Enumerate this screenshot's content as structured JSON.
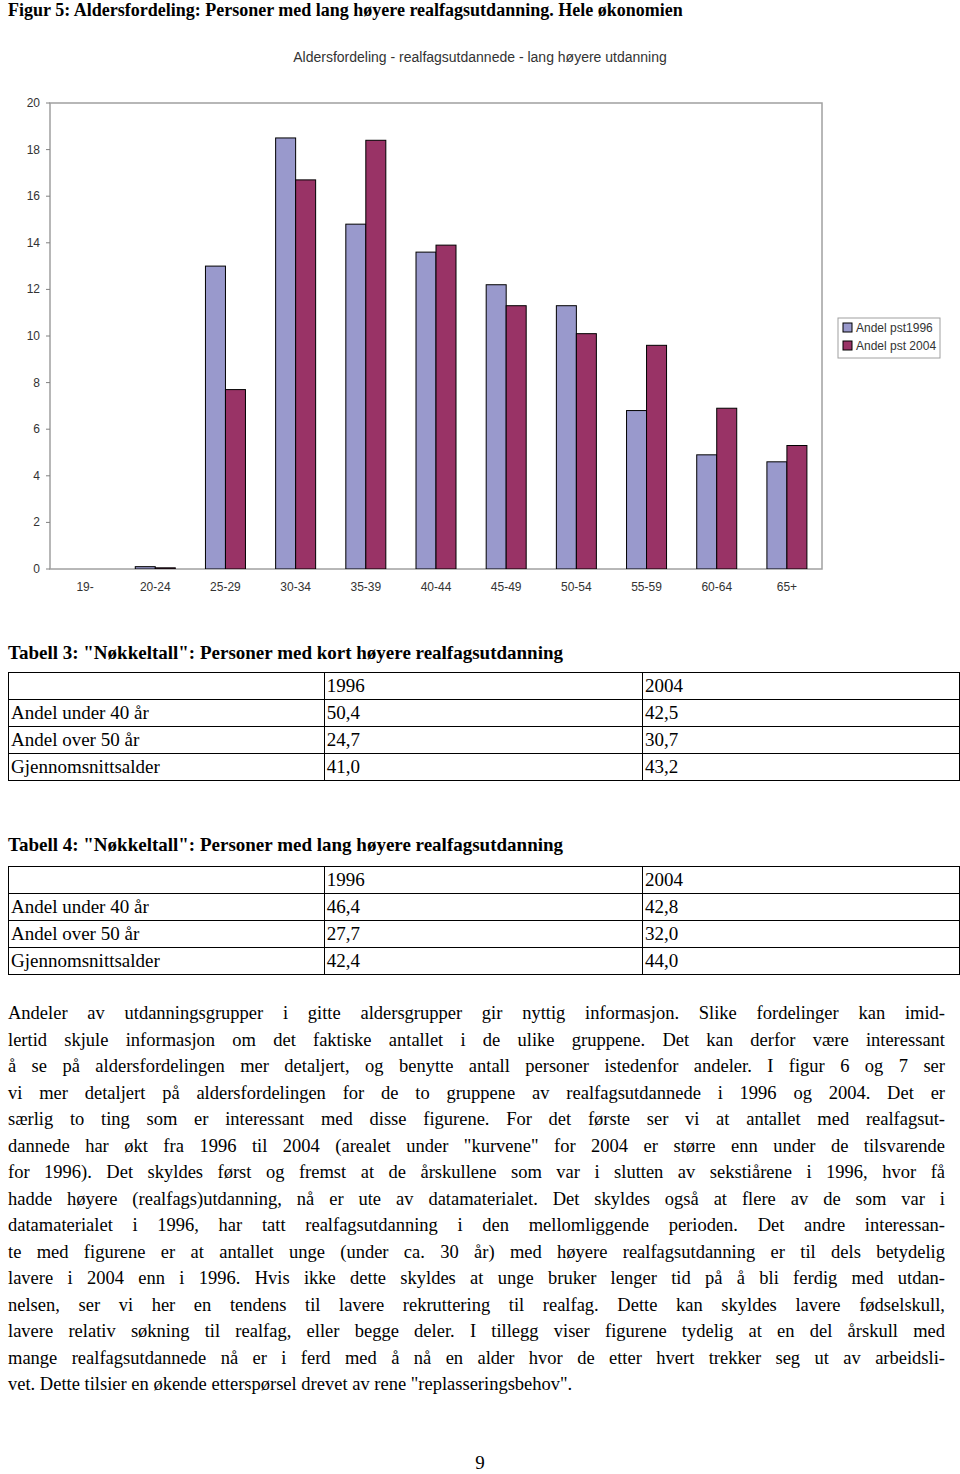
{
  "caption": "Figur 5: Aldersfordeling: Personer med lang høyere realfagsutdanning. Hele økonomien",
  "chart_data": {
    "type": "bar",
    "title": "Aldersfordeling - realfagsutdannede - lang høyere utdanning",
    "categories": [
      "19-",
      "20-24",
      "25-29",
      "30-34",
      "35-39",
      "40-44",
      "45-49",
      "50-54",
      "55-59",
      "60-64",
      "65+"
    ],
    "series": [
      {
        "name": "Andel pst1996",
        "color": "#9999cc",
        "values": [
          0,
          0.1,
          13.0,
          18.5,
          14.8,
          13.6,
          12.2,
          11.3,
          6.8,
          4.9,
          4.6
        ]
      },
      {
        "name": "Andel pst 2004",
        "color": "#993366",
        "values": [
          0,
          0.05,
          7.7,
          16.7,
          18.4,
          13.9,
          11.3,
          10.1,
          9.6,
          6.9,
          5.3
        ]
      }
    ],
    "ylim": [
      0,
      20
    ],
    "yticks": [
      0,
      2,
      4,
      6,
      8,
      10,
      12,
      14,
      16,
      18,
      20
    ],
    "grid": false,
    "legend": "right"
  },
  "tables": [
    {
      "title": "Tabell 3: \"Nøkkeltall\": Personer med kort høyere realfagsutdanning",
      "columns": [
        "1996",
        "2004"
      ],
      "rows": [
        {
          "label": "Andel under 40 år",
          "cells": [
            "50,4",
            "42,5"
          ]
        },
        {
          "label": "Andel over 50 år",
          "cells": [
            "24,7",
            "30,7"
          ]
        },
        {
          "label": "Gjennomsnittsalder",
          "cells": [
            "41,0",
            "43,2"
          ]
        }
      ]
    },
    {
      "title": "Tabell 4: \"Nøkkeltall\": Personer med lang høyere realfagsutdanning",
      "columns": [
        "1996",
        "2004"
      ],
      "rows": [
        {
          "label": "Andel under 40 år",
          "cells": [
            "46,4",
            "42,8"
          ]
        },
        {
          "label": "Andel over 50 år",
          "cells": [
            "27,7",
            "32,0"
          ]
        },
        {
          "label": "Gjennomsnittsalder",
          "cells": [
            "42,4",
            "44,0"
          ]
        }
      ]
    }
  ],
  "body": {
    "lines": [
      "Andeler av utdanningsgrupper i gitte aldersgrupper gir nyttig informasjon. Slike fordelinger kan imid-",
      "lertid skjule informasjon om det faktiske antallet i de ulike gruppene. Det kan derfor være interessant",
      "å se på aldersfordelingen mer detaljert, og benytte antall personer istedenfor andeler. I figur 6 og 7 ser",
      "vi mer detaljert på aldersfordelingen for de to gruppene av realfagsutdannede i 1996 og 2004. Det er",
      "særlig to ting som er interessant med disse figurene. For det første ser vi at antallet med realfagsut-",
      "dannede har økt fra 1996 til 2004 (arealet under \"kurvene\" for 2004 er større enn under de tilsvarende",
      "for 1996). Det skyldes først og fremst at de årskullene som var i slutten av sekstiårene i 1996, hvor få",
      "hadde høyere (realfags)utdanning, nå er ute av datamaterialet. Det skyldes også at flere av de som var i",
      "datamaterialet i 1996, har tatt realfagsutdanning i den mellomliggende perioden. Det andre interessan-",
      "te med figurene er at antallet unge (under ca. 30 år) med høyere realfagsutdanning er til dels betydelig",
      "lavere i 2004 enn i 1996. Hvis ikke dette skyldes at unge bruker lenger tid på å bli ferdig med utdan-",
      "nelsen, ser vi her en tendens til lavere rekruttering til realfag. Dette kan skyldes lavere fødselskull,",
      "lavere relativ søkning til realfag, eller begge deler. I tillegg viser figurene tydelig at en del årskull med",
      "mange realfagsutdannede nå er i ferd med å nå en alder hvor de etter hvert trekker seg ut av arbeidsli-",
      "vet. Dette tilsier en økende etterspørsel drevet av rene \"replasseringsbehov\"."
    ]
  },
  "page_number": "9"
}
